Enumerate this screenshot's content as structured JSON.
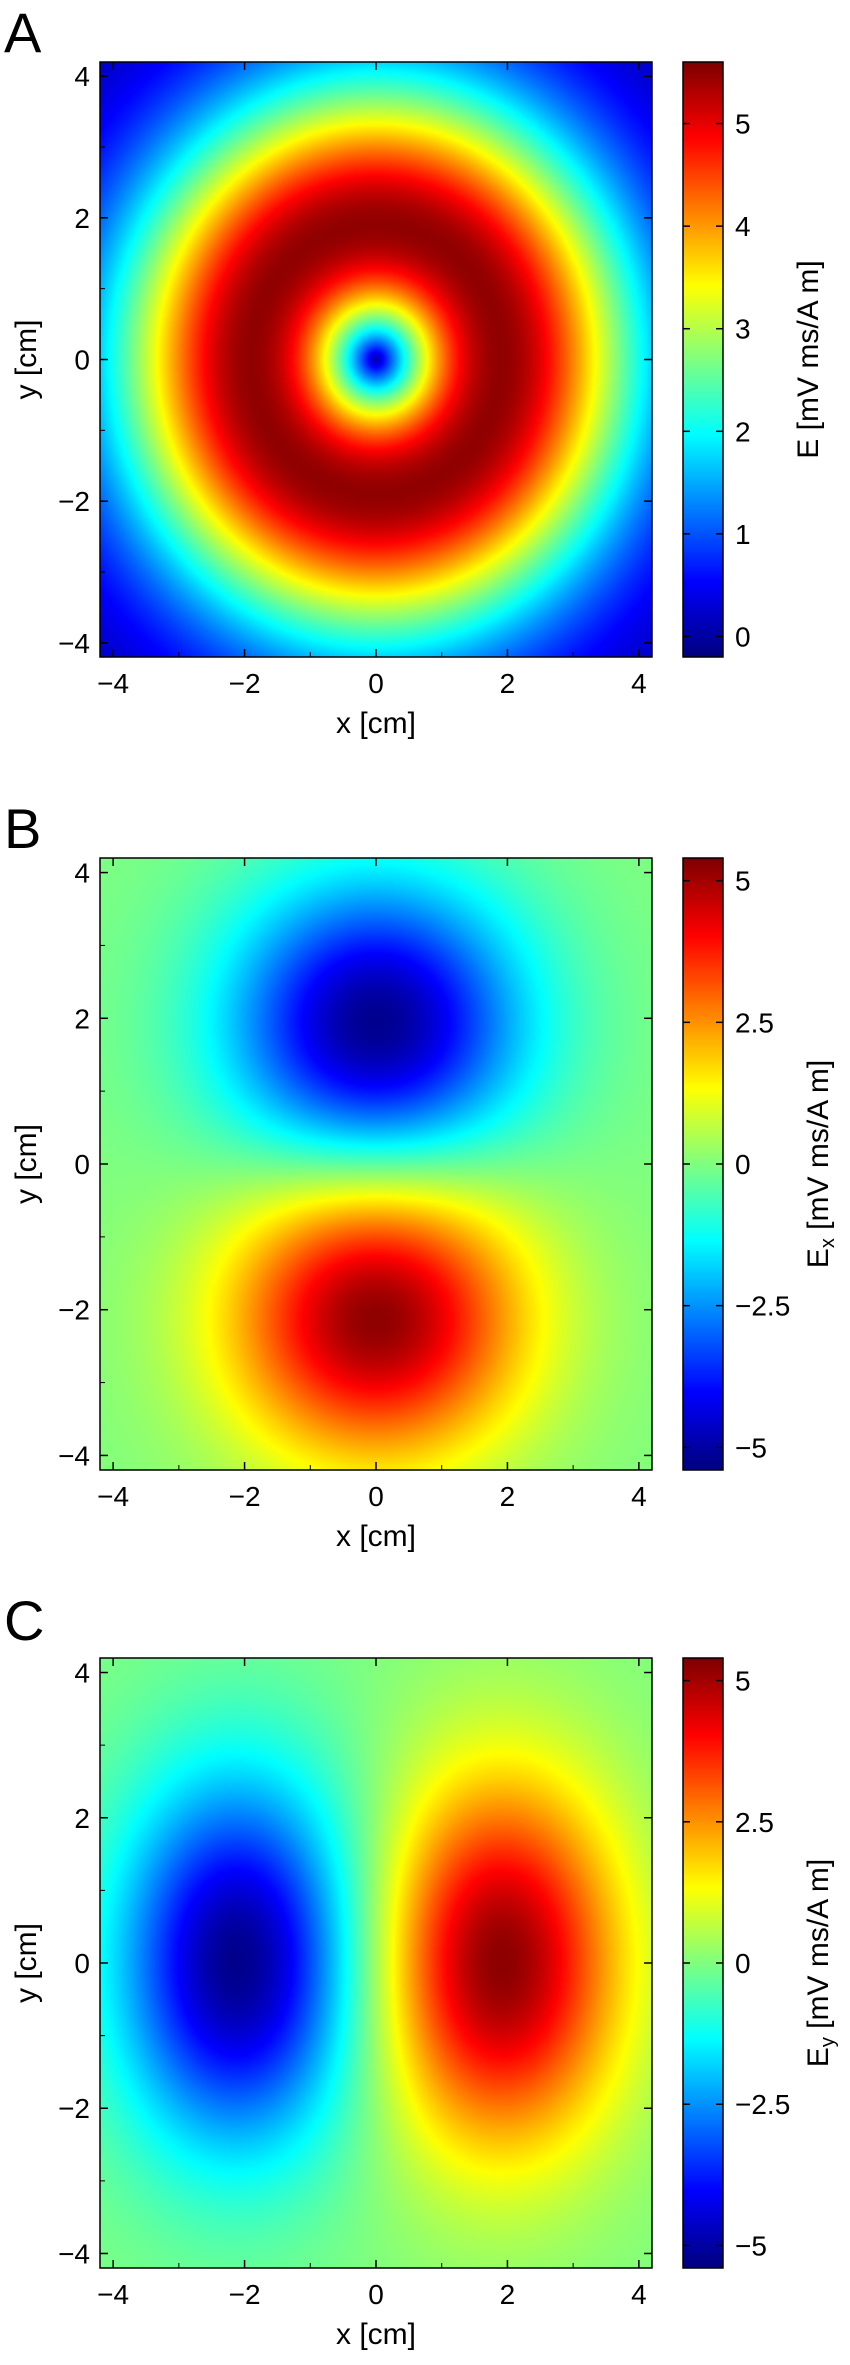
{
  "chart_data": [
    {
      "type": "heatmap",
      "panel_label": "A",
      "field": "magnitude",
      "xlabel": "x [cm]",
      "ylabel": "y [cm]",
      "colorbar_label": "E [mV ms/A m]",
      "xlim": [
        -4.2,
        4.2
      ],
      "ylim": [
        -4.2,
        4.2
      ],
      "x_ticks": [
        -4,
        -2,
        0,
        2,
        4
      ],
      "y_ticks": [
        -4,
        -2,
        0,
        2,
        4
      ],
      "x_tick_labels": [
        "−4",
        "−2",
        "0",
        "2",
        "4"
      ],
      "y_tick_labels": [
        "−4",
        "−2",
        "0",
        "2",
        "4"
      ],
      "clim": [
        -0.2,
        5.6
      ],
      "colorbar_ticks": [
        0,
        1,
        2,
        3,
        4,
        5
      ],
      "colorbar_tick_labels": [
        "0",
        "1",
        "2",
        "3",
        "4",
        "5"
      ],
      "max_value": 5.5,
      "peak_radius": 1.9,
      "center": [
        0,
        0
      ]
    },
    {
      "type": "heatmap",
      "panel_label": "B",
      "field": "x-component",
      "xlabel": "x [cm]",
      "ylabel": "y [cm]",
      "colorbar_label": "Ex [mV ms/A m]",
      "colorbar_label_main": "E",
      "colorbar_label_sub": "x",
      "colorbar_label_unit": " [mV ms/A m]",
      "xlim": [
        -4.2,
        4.2
      ],
      "ylim": [
        -4.2,
        4.2
      ],
      "x_ticks": [
        -4,
        -2,
        0,
        2,
        4
      ],
      "y_ticks": [
        -4,
        -2,
        0,
        2,
        4
      ],
      "x_tick_labels": [
        "−4",
        "−2",
        "0",
        "2",
        "4"
      ],
      "y_tick_labels": [
        "−4",
        "−2",
        "0",
        "2",
        "4"
      ],
      "clim": [
        -5.4,
        5.4
      ],
      "colorbar_ticks": [
        -5,
        -2.5,
        0,
        2.5,
        5
      ],
      "colorbar_tick_labels": [
        "−5",
        "−2.5",
        "0",
        "2.5",
        "5"
      ],
      "min_value": -5.2,
      "max_value": 5.2,
      "min_location": [
        0,
        1.9
      ],
      "max_location": [
        0,
        -2.1
      ]
    },
    {
      "type": "heatmap",
      "panel_label": "C",
      "field": "y-component",
      "xlabel": "x [cm]",
      "ylabel": "y [cm]",
      "colorbar_label": "Ey [mV ms/A m]",
      "colorbar_label_main": "E",
      "colorbar_label_sub": "y",
      "colorbar_label_unit": " [mV ms/A m]",
      "xlim": [
        -4.2,
        4.2
      ],
      "ylim": [
        -4.2,
        4.2
      ],
      "x_ticks": [
        -4,
        -2,
        0,
        2,
        4
      ],
      "y_ticks": [
        -4,
        -2,
        0,
        2,
        4
      ],
      "x_tick_labels": [
        "−4",
        "−2",
        "0",
        "2",
        "4"
      ],
      "y_tick_labels": [
        "−4",
        "−2",
        "0",
        "2",
        "4"
      ],
      "clim": [
        -5.4,
        5.4
      ],
      "colorbar_ticks": [
        -5,
        -2.5,
        0,
        2.5,
        5
      ],
      "colorbar_tick_labels": [
        "−5",
        "−2.5",
        "0",
        "2.5",
        "5"
      ],
      "min_value": -5.2,
      "max_value": 5.2,
      "min_location": [
        -2.1,
        0
      ],
      "max_location": [
        1.9,
        0
      ]
    }
  ]
}
